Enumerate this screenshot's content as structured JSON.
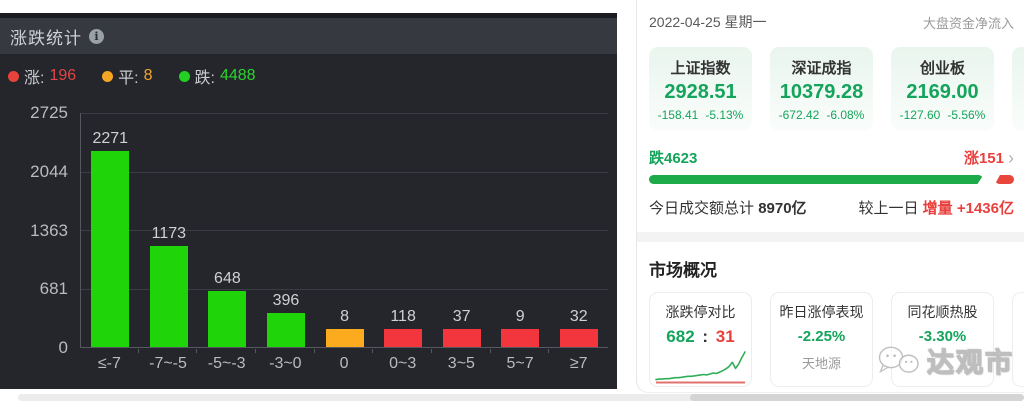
{
  "colors": {
    "bar_green": "#20d40a",
    "bar_red": "#f3363d",
    "bar_orange": "#fbab1d",
    "legend_up_red": "#e24545",
    "legend_flat_orange": "#f2a633",
    "legend_down_green": "#2bd42b",
    "index_green": "#14a45c",
    "index_red": "#e8403d",
    "progress_green": "#1cab48",
    "progress_red": "#e8453c",
    "panel_bg": "#24262c"
  },
  "left_panel": {
    "title": "涨跌统计",
    "info_glyph": "i",
    "legend": [
      {
        "label": "涨:",
        "value": "196"
      },
      {
        "label": "平:",
        "value": "8"
      },
      {
        "label": "跌:",
        "value": "4488"
      }
    ]
  },
  "chart_data": {
    "type": "bar",
    "title": "涨跌统计",
    "categories": [
      "≤-7",
      "-7~-5",
      "-5~-3",
      "-3~0",
      "0",
      "0~3",
      "3~5",
      "5~7",
      "≥7"
    ],
    "values": [
      2271,
      1173,
      648,
      396,
      8,
      118,
      37,
      9,
      32
    ],
    "bar_colors": [
      "green",
      "green",
      "green",
      "green",
      "orange",
      "red",
      "red",
      "red",
      "red"
    ],
    "yticks": [
      2725,
      2044,
      1363,
      681,
      0
    ],
    "ylim": [
      0,
      2725
    ],
    "xlabel": "",
    "ylabel": "",
    "grid": true,
    "legend_counts": {
      "up": 196,
      "flat": 8,
      "down": 4488
    }
  },
  "right_panel": {
    "date": "2022-04-25 星期一",
    "net_inflow_label": "大盘资金净流入",
    "indices": [
      {
        "name": "上证指数",
        "value": "2928.51",
        "change": "-158.41",
        "pct": "-5.13%"
      },
      {
        "name": "深证成指",
        "value": "10379.28",
        "change": "-672.42",
        "pct": "-6.08%"
      },
      {
        "name": "创业板",
        "value": "2169.00",
        "change": "-127.60",
        "pct": "-5.56%"
      }
    ],
    "updown": {
      "down_label": "跌4623",
      "up_label": "涨151",
      "chevron": "›",
      "down_ratio": 0.93
    },
    "turnover": {
      "label": "今日成交额总计",
      "value": "8970亿",
      "compare_label": "较上一日",
      "delta_label": "增量",
      "delta_value": "+1436亿"
    },
    "market_overview": {
      "title": "市场概况",
      "cards": [
        {
          "title": "涨跌停对比",
          "up_count": "682",
          "sep": ":",
          "down_count": "31",
          "sparkline": [
            3,
            4,
            4,
            5,
            5,
            6,
            7,
            7,
            8,
            9,
            10,
            10,
            11,
            12,
            13,
            14,
            13,
            15,
            17,
            16,
            19,
            22,
            26,
            31,
            40,
            27,
            36,
            50,
            62
          ]
        },
        {
          "title": "昨日涨停表现",
          "value": "-2.25%",
          "sub": "天地源"
        },
        {
          "title": "同花顺热股",
          "value": "-3.30%"
        }
      ]
    },
    "watermark": "达观市"
  }
}
